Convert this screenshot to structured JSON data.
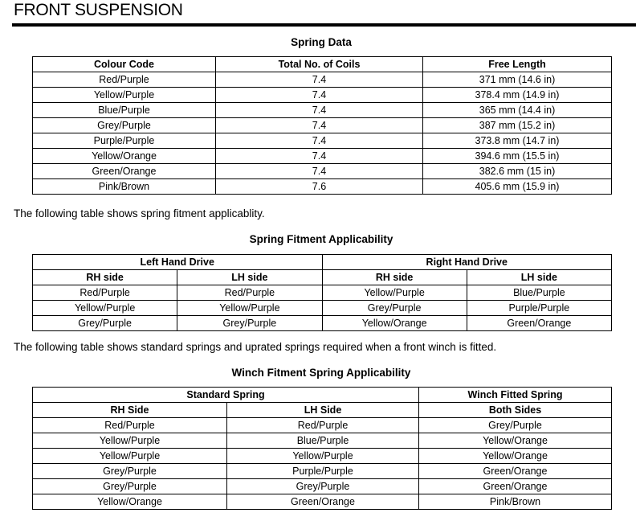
{
  "page_title": "FRONT SUSPENSION",
  "spring_data": {
    "caption": "Spring Data",
    "headers": [
      "Colour Code",
      "Total No. of Coils",
      "Free Length"
    ],
    "rows": [
      [
        "Red/Purple",
        "7.4",
        "371 mm (14.6 in)"
      ],
      [
        "Yellow/Purple",
        "7.4",
        "378.4 mm (14.9 in)"
      ],
      [
        "Blue/Purple",
        "7.4",
        "365 mm (14.4 in)"
      ],
      [
        "Grey/Purple",
        "7.4",
        "387 mm (15.2 in)"
      ],
      [
        "Purple/Purple",
        "7.4",
        "373.8 mm (14.7 in)"
      ],
      [
        "Yellow/Orange",
        "7.4",
        "394.6 mm (15.5 in)"
      ],
      [
        "Green/Orange",
        "7.4",
        "382.6 mm (15 in)"
      ],
      [
        "Pink/Brown",
        "7.6",
        "405.6 mm (15.9 in)"
      ]
    ]
  },
  "para1": "The following table shows spring fitment applicablity.",
  "fitment": {
    "caption": "Spring Fitment Applicability",
    "group_headers": [
      "Left Hand Drive",
      "Right Hand Drive"
    ],
    "headers": [
      "RH side",
      "LH side",
      "RH side",
      "LH side"
    ],
    "rows": [
      [
        "Red/Purple",
        "Red/Purple",
        "Yellow/Purple",
        "Blue/Purple"
      ],
      [
        "Yellow/Purple",
        "Yellow/Purple",
        "Grey/Purple",
        "Purple/Purple"
      ],
      [
        "Grey/Purple",
        "Grey/Purple",
        "Yellow/Orange",
        "Green/Orange"
      ]
    ]
  },
  "para2": "The following table shows standard springs and uprated springs required when a front winch is fitted.",
  "winch": {
    "caption": "Winch Fitment Spring Applicability",
    "group_headers": [
      "Standard Spring",
      "Winch Fitted Spring"
    ],
    "headers": [
      "RH Side",
      "LH Side",
      "Both Sides"
    ],
    "rows": [
      [
        "Red/Purple",
        "Red/Purple",
        "Grey/Purple"
      ],
      [
        "Yellow/Purple",
        "Blue/Purple",
        "Yellow/Orange"
      ],
      [
        "Yellow/Purple",
        "Yellow/Purple",
        "Yellow/Orange"
      ],
      [
        "Grey/Purple",
        "Purple/Purple",
        "Green/Orange"
      ],
      [
        "Grey/Purple",
        "Grey/Purple",
        "Green/Orange"
      ],
      [
        "Yellow/Orange",
        "Green/Orange",
        "Pink/Brown"
      ]
    ]
  }
}
